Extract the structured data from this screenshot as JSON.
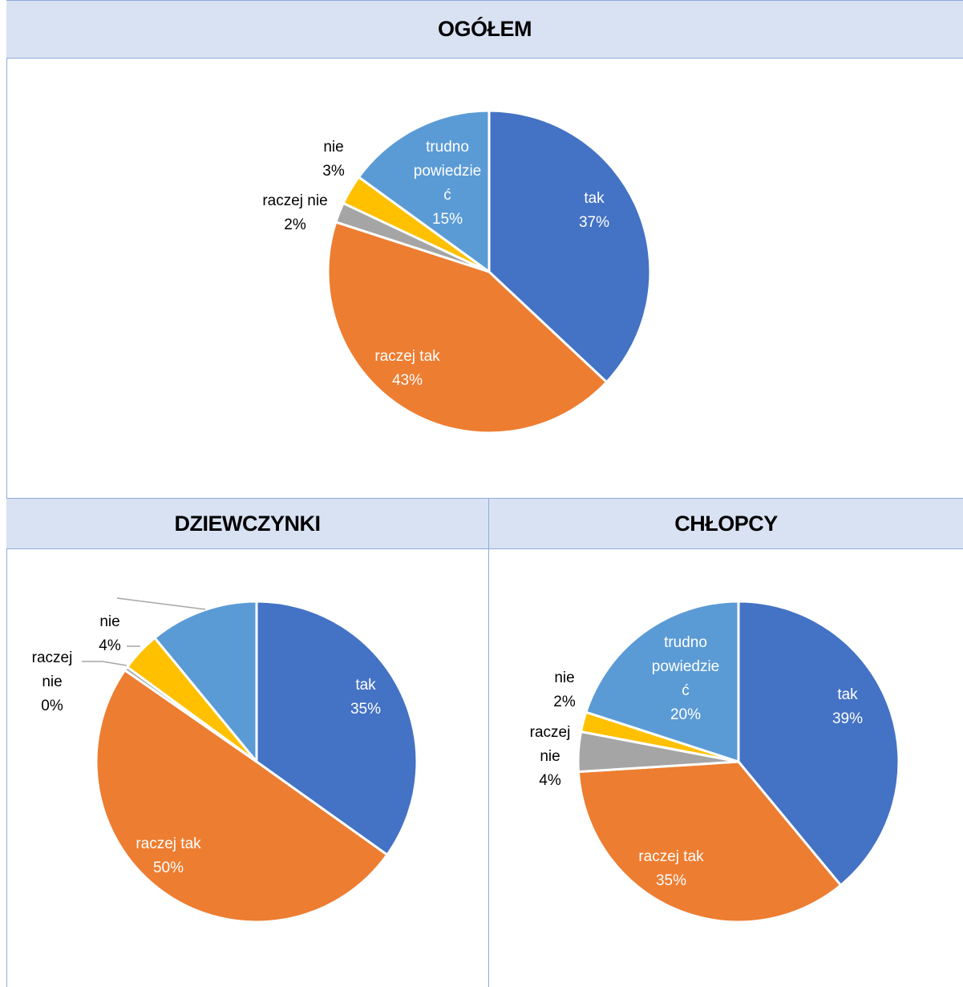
{
  "headers": {
    "overall": "OGÓŁEM",
    "girls": "DZIEWCZYNKI",
    "boys": "CHŁOPCY"
  },
  "colors": {
    "tak": "#4472c4",
    "raczej tak": "#ed7d31",
    "raczej nie": "#a5a5a5",
    "nie": "#ffc000",
    "trudno powiedzieć": "#5b9bd5",
    "header_bg": "#d9e2f3",
    "border": "#8eaadb"
  },
  "chart_data": [
    {
      "type": "pie",
      "title": "OGÓŁEM",
      "categories": [
        "tak",
        "raczej tak",
        "raczej nie",
        "nie",
        "trudno powiedzieć"
      ],
      "values": [
        37,
        43,
        2,
        3,
        15
      ],
      "labels": [
        [
          "tak",
          "37%"
        ],
        [
          "raczej tak",
          "43%"
        ],
        [
          "raczej nie",
          "2%"
        ],
        [
          "nie",
          "3%"
        ],
        [
          "trudno",
          "powiedzie",
          "ć",
          "15%"
        ]
      ]
    },
    {
      "type": "pie",
      "title": "DZIEWCZYNKI",
      "categories": [
        "tak",
        "raczej tak",
        "raczej nie",
        "nie",
        "trudno powiedzieć"
      ],
      "values": [
        35,
        50,
        0.4,
        4,
        11
      ],
      "labels": [
        [
          "tak",
          "35%"
        ],
        [
          "raczej tak",
          "50%"
        ],
        [
          "raczej",
          "nie",
          "0%"
        ],
        [
          "nie",
          "4%"
        ],
        []
      ]
    },
    {
      "type": "pie",
      "title": "CHŁOPCY",
      "categories": [
        "tak",
        "raczej tak",
        "raczej nie",
        "nie",
        "trudno powiedzieć"
      ],
      "values": [
        39,
        35,
        4,
        2,
        20
      ],
      "labels": [
        [
          "tak",
          "39%"
        ],
        [
          "raczej tak",
          "35%"
        ],
        [
          "raczej",
          "nie",
          "4%"
        ],
        [
          "nie",
          "2%"
        ],
        [
          "trudno",
          "powiedzie",
          "ć",
          "20%"
        ]
      ]
    }
  ]
}
